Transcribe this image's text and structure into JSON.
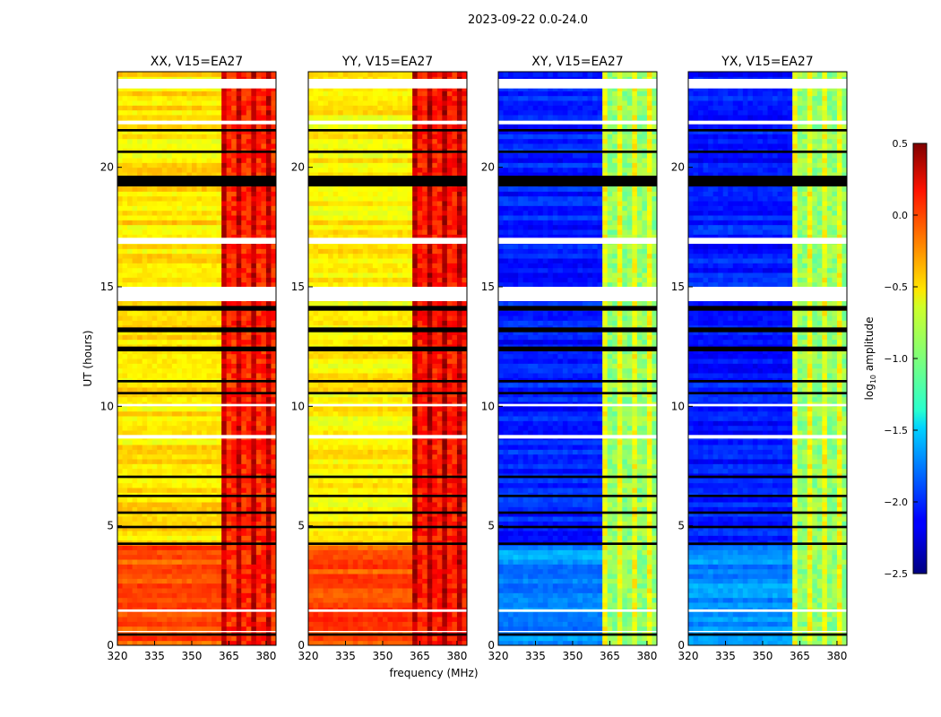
{
  "chart_data": {
    "type": "heatmap",
    "title": "2023-09-22 0.0-24.0",
    "xlabel": "frequency (MHz)",
    "ylabel": "UT (hours)",
    "xlim": [
      320,
      384
    ],
    "ylim": [
      0,
      24
    ],
    "xticks": [
      "320",
      "335",
      "350",
      "365",
      "380"
    ],
    "xtick_values": [
      320,
      335,
      350,
      365,
      380
    ],
    "yticks": [
      "0",
      "5",
      "10",
      "15",
      "20"
    ],
    "ytick_values": [
      0,
      5,
      10,
      15,
      20
    ],
    "panels": [
      {
        "title": "XX, V15=EA27",
        "base": -0.55,
        "early": -0.1,
        "rfi": 0.1
      },
      {
        "title": "YY, V15=EA27",
        "base": -0.6,
        "early": -0.1,
        "rfi": 0.15
      },
      {
        "title": "XY, V15=EA27",
        "base": -2.05,
        "early": -1.7,
        "rfi": -0.85
      },
      {
        "title": "YX, V15=EA27",
        "base": -2.05,
        "early": -1.7,
        "rfi": -0.85
      }
    ],
    "rfi_band_mhz": [
      362,
      380
    ],
    "flagged_white_hours": [
      [
        23.3,
        23.7
      ],
      [
        21.8,
        21.95
      ],
      [
        16.8,
        17.05
      ],
      [
        14.4,
        15.0
      ],
      [
        10.0,
        10.1
      ],
      [
        8.65,
        8.8
      ],
      [
        1.4,
        1.5
      ],
      [
        0.55,
        0.6
      ]
    ],
    "flagged_black_hours": [
      [
        19.2,
        19.65
      ],
      [
        21.5,
        21.6
      ],
      [
        20.6,
        20.7
      ],
      [
        14.0,
        14.2
      ],
      [
        13.1,
        13.3
      ],
      [
        12.3,
        12.5
      ],
      [
        11.0,
        11.1
      ],
      [
        10.5,
        10.6
      ],
      [
        7.0,
        7.1
      ],
      [
        6.2,
        6.3
      ],
      [
        5.5,
        5.6
      ],
      [
        4.9,
        5.0
      ],
      [
        4.2,
        4.3
      ],
      [
        0.4,
        0.5
      ]
    ],
    "colorbar": {
      "label": "log10 amplitude",
      "range": [
        -2.5,
        0.5
      ],
      "ticks": [
        "0.5",
        "0.0",
        "−0.5",
        "−1.0",
        "−1.5",
        "−2.0",
        "−2.5"
      ],
      "tick_values": [
        0.5,
        0.0,
        -0.5,
        -1.0,
        -1.5,
        -2.0,
        -2.5
      ]
    }
  }
}
